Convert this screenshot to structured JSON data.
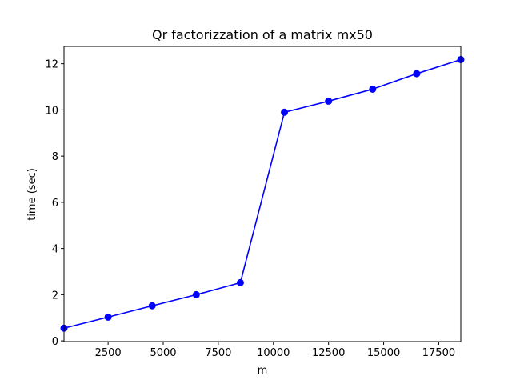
{
  "chart_data": {
    "type": "line",
    "title": "Qr factorizzation of a matrix mx50",
    "xlabel": "m",
    "ylabel": "time (sec)",
    "xlim": [
      500,
      18500
    ],
    "ylim": [
      -0.03,
      12.75
    ],
    "xticks": [
      2500,
      5000,
      7500,
      10000,
      12500,
      15000,
      17500
    ],
    "yticks": [
      0,
      2,
      4,
      6,
      8,
      10,
      12
    ],
    "grid": false,
    "series": [
      {
        "color": "#0000ff",
        "marker": "circle",
        "x": [
          500,
          2500,
          4500,
          6500,
          8500,
          10500,
          12500,
          14500,
          16500,
          18500
        ],
        "y": [
          0.55,
          1.03,
          1.52,
          2.0,
          2.52,
          9.9,
          10.38,
          10.9,
          11.57,
          12.18
        ]
      }
    ]
  }
}
